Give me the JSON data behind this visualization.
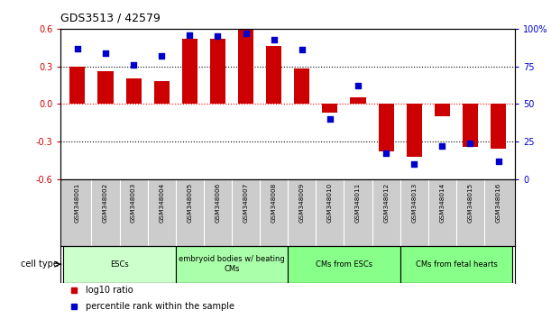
{
  "title": "GDS3513 / 42579",
  "samples": [
    "GSM348001",
    "GSM348002",
    "GSM348003",
    "GSM348004",
    "GSM348005",
    "GSM348006",
    "GSM348007",
    "GSM348008",
    "GSM348009",
    "GSM348010",
    "GSM348011",
    "GSM348012",
    "GSM348013",
    "GSM348014",
    "GSM348015",
    "GSM348016"
  ],
  "log10_ratio": [
    0.3,
    0.26,
    0.2,
    0.18,
    0.52,
    0.52,
    0.59,
    0.46,
    0.28,
    -0.07,
    0.05,
    -0.38,
    -0.42,
    -0.1,
    -0.34,
    -0.36
  ],
  "percentile_rank": [
    87,
    84,
    76,
    82,
    96,
    95,
    97,
    93,
    86,
    40,
    62,
    17,
    10,
    22,
    24,
    12
  ],
  "cell_type_groups": [
    {
      "label": "ESCs",
      "start": 0,
      "end": 3
    },
    {
      "label": "embryoid bodies w/ beating\nCMs",
      "start": 4,
      "end": 7
    },
    {
      "label": "CMs from ESCs",
      "start": 8,
      "end": 11
    },
    {
      "label": "CMs from fetal hearts",
      "start": 12,
      "end": 15
    }
  ],
  "group_colors": [
    "#ccffcc",
    "#aaffaa",
    "#88ff88",
    "#88ff88"
  ],
  "bar_color": "#cc0000",
  "dot_color": "#0000cc",
  "ylim_left": [
    -0.6,
    0.6
  ],
  "ylim_right": [
    0,
    100
  ],
  "yticks_left": [
    -0.6,
    -0.3,
    0.0,
    0.3,
    0.6
  ],
  "yticks_right": [
    0,
    25,
    50,
    75,
    100
  ],
  "ytick_labels_right": [
    "0",
    "25",
    "50",
    "75",
    "100%"
  ],
  "hlines_dotted": [
    0.3,
    -0.3
  ],
  "hline_red": 0.0,
  "background_color": "#ffffff",
  "sample_bg_color": "#cccccc",
  "cell_type_label": "cell type",
  "legend_bar_label": "log10 ratio",
  "legend_dot_label": "percentile rank within the sample"
}
